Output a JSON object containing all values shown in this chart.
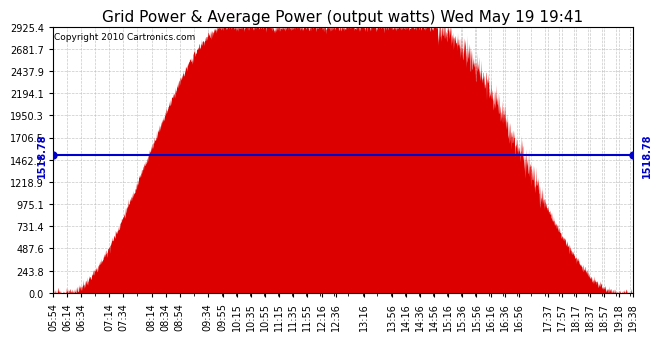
{
  "title": "Grid Power & Average Power (output watts) Wed May 19 19:41",
  "copyright": "Copyright 2010 Cartronics.com",
  "avg_power": 1518.78,
  "y_max": 2925.4,
  "y_min": 0.0,
  "y_ticks": [
    0.0,
    243.8,
    487.6,
    731.4,
    975.1,
    1218.9,
    1462.7,
    1706.5,
    1950.3,
    2194.1,
    2437.9,
    2681.7,
    2925.4
  ],
  "x_labels": [
    "05:54",
    "06:14",
    "06:34",
    "07:14",
    "07:34",
    "08:14",
    "08:34",
    "08:54",
    "09:34",
    "09:55",
    "10:15",
    "10:35",
    "10:55",
    "11:15",
    "11:35",
    "11:55",
    "12:16",
    "12:36",
    "13:16",
    "13:56",
    "14:16",
    "14:36",
    "14:56",
    "15:16",
    "15:36",
    "15:56",
    "16:16",
    "16:36",
    "16:56",
    "17:37",
    "17:57",
    "18:17",
    "18:37",
    "18:57",
    "19:18",
    "19:38"
  ],
  "background_color": "#ffffff",
  "fill_color": "#dd0000",
  "line_color": "#0000cc",
  "grid_color": "#bbbbbb",
  "title_fontsize": 11,
  "label_fontsize": 7,
  "avg_label": "1518.78"
}
